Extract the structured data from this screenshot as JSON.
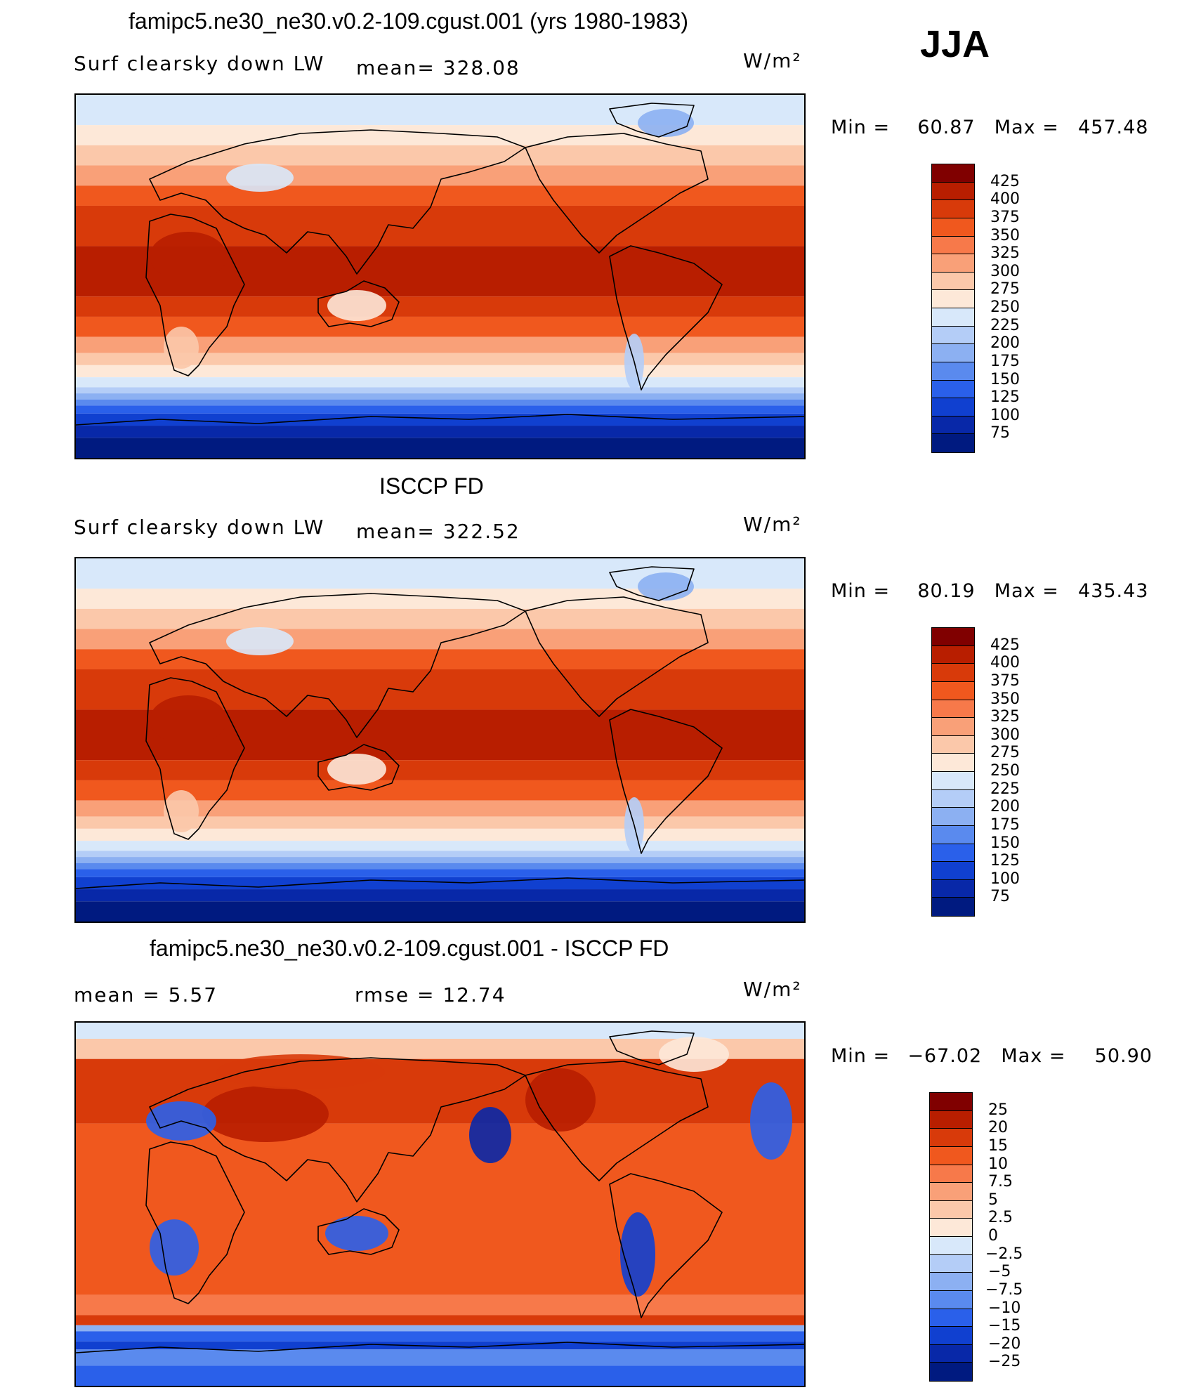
{
  "season": "JJA",
  "panels": [
    {
      "title": "famipc5.ne30_ne30.v0.2-109.cgust.001 (yrs 1980-1983)",
      "left_text": "Surf clearsky down LW",
      "mid_text": "mean= 328.08",
      "units": "W/m²",
      "min_label": "Min =",
      "min_value": "60.87",
      "max_label": "Max =",
      "max_value": "457.48",
      "palette": "full",
      "colors": [
        "#800000",
        "#b81e00",
        "#d83a0a",
        "#f0581e",
        "#f7794a",
        "#f9a078",
        "#fbc8aa",
        "#fde8d8",
        "#d8e8fa",
        "#b4cdf7",
        "#8cb0f2",
        "#5a8aee",
        "#2a60ea",
        "#1040d0",
        "#0828a8",
        "#001a80"
      ],
      "labels": [
        "425",
        "400",
        "375",
        "350",
        "325",
        "300",
        "275",
        "250",
        "225",
        "200",
        "175",
        "150",
        "125",
        "100",
        "75"
      ]
    },
    {
      "title": "ISCCP FD",
      "left_text": "Surf clearsky down LW",
      "mid_text": "mean= 322.52",
      "units": "W/m²",
      "min_label": "Min =",
      "min_value": "80.19",
      "max_label": "Max =",
      "max_value": "435.43",
      "palette": "full",
      "colors": [
        "#800000",
        "#b81e00",
        "#d83a0a",
        "#f0581e",
        "#f7794a",
        "#f9a078",
        "#fbc8aa",
        "#fde8d8",
        "#d8e8fa",
        "#b4cdf7",
        "#8cb0f2",
        "#5a8aee",
        "#2a60ea",
        "#1040d0",
        "#0828a8",
        "#001a80"
      ],
      "labels": [
        "425",
        "400",
        "375",
        "350",
        "325",
        "300",
        "275",
        "250",
        "225",
        "200",
        "175",
        "150",
        "125",
        "100",
        "75"
      ]
    },
    {
      "title": "famipc5.ne30_ne30.v0.2-109.cgust.001 - ISCCP FD",
      "left_text": "mean =      5.57",
      "mid_text": "rmse =     12.74",
      "units": "W/m²",
      "min_label": "Min =",
      "min_value": "−67.02",
      "max_label": "Max =",
      "max_value": "50.90",
      "palette": "diff",
      "colors": [
        "#800000",
        "#b81e00",
        "#d83a0a",
        "#f0581e",
        "#f7794a",
        "#f9a078",
        "#fbc8aa",
        "#fde8d8",
        "#d8e8fa",
        "#b4cdf7",
        "#8cb0f2",
        "#5a8aee",
        "#2a60ea",
        "#1040d0",
        "#0828a8",
        "#001a80"
      ],
      "labels": [
        "25",
        "20",
        "15",
        "10",
        "7.5",
        "5",
        "2.5",
        "0",
        "−2.5",
        "−5",
        "−7.5",
        "−10",
        "−15",
        "−20",
        "−25"
      ]
    }
  ]
}
